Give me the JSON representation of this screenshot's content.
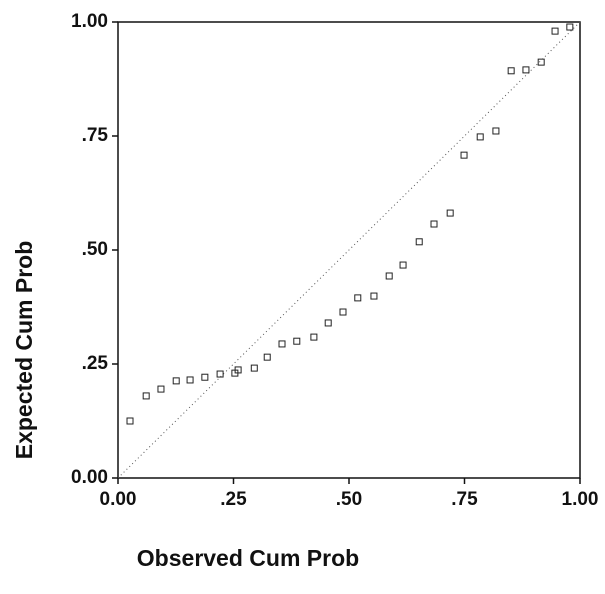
{
  "chart_data": {
    "type": "scatter",
    "xlabel": "Observed Cum Prob",
    "ylabel": "Expected Cum Prob",
    "xlim": [
      0,
      1
    ],
    "ylim": [
      0,
      1
    ],
    "xticks": [
      {
        "value": 0,
        "label": "0.00"
      },
      {
        "value": 0.25,
        "label": ".25"
      },
      {
        "value": 0.5,
        "label": ".50"
      },
      {
        "value": 0.75,
        "label": ".75"
      },
      {
        "value": 1,
        "label": "1.00"
      }
    ],
    "yticks": [
      {
        "value": 0,
        "label": "0.00"
      },
      {
        "value": 0.25,
        "label": ".25"
      },
      {
        "value": 0.5,
        "label": ".50"
      },
      {
        "value": 0.75,
        "label": ".75"
      },
      {
        "value": 1,
        "label": "1.00"
      }
    ],
    "color": "#222222",
    "x": [
      0.026,
      0.061,
      0.093,
      0.126,
      0.156,
      0.188,
      0.221,
      0.253,
      0.26,
      0.295,
      0.323,
      0.355,
      0.387,
      0.424,
      0.455,
      0.487,
      0.519,
      0.554,
      0.587,
      0.617,
      0.652,
      0.684,
      0.719,
      0.749,
      0.784,
      0.818,
      0.851,
      0.883,
      0.916,
      0.946,
      0.978
    ],
    "values": [
      0.125,
      0.18,
      0.195,
      0.213,
      0.215,
      0.221,
      0.228,
      0.23,
      0.237,
      0.241,
      0.265,
      0.294,
      0.3,
      0.309,
      0.34,
      0.364,
      0.395,
      0.399,
      0.443,
      0.467,
      0.518,
      0.557,
      0.581,
      0.708,
      0.748,
      0.761,
      0.893,
      0.895,
      0.912,
      0.98,
      0.989
    ]
  }
}
